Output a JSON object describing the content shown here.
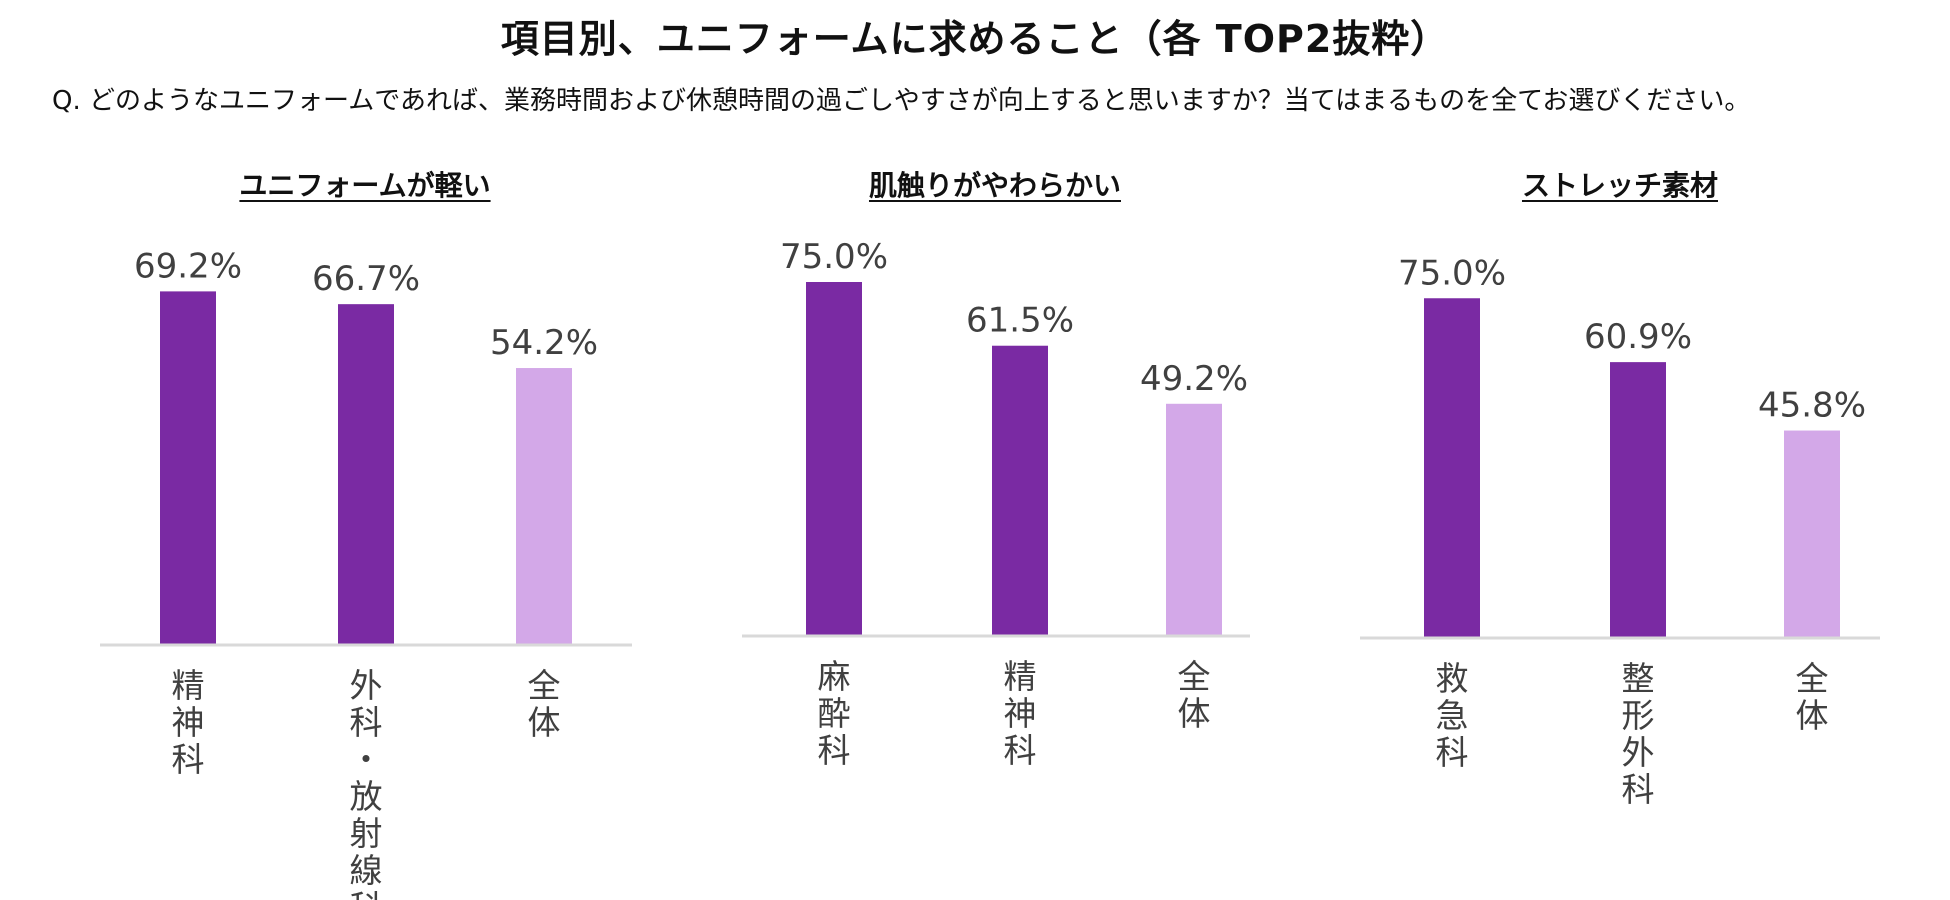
{
  "title": "項目別、ユニフォームに求めること（各 TOP2抜粋）",
  "question": "Q. どのようなユニフォームであれば、業務時間および休憩時間の過ごしやすさが向上すると思いますか？当てはまるものを全てお選びください。",
  "colors": {
    "highlight": "#7a2aa3",
    "overall": "#d3a8e8",
    "axis": "#d9d9d9",
    "value_text": "#404040"
  },
  "chart_data": [
    {
      "type": "bar",
      "title": "ユニフォームが軽い",
      "categories": [
        "精神科",
        "外科・放射線科",
        "全体"
      ],
      "values": [
        69.2,
        66.7,
        54.2
      ],
      "value_labels": [
        "69.2%",
        "66.7%",
        "54.2%"
      ],
      "series_kind": [
        "highlight",
        "highlight",
        "overall"
      ],
      "unit": "%",
      "ylim": [
        0,
        100
      ],
      "grid": false
    },
    {
      "type": "bar",
      "title": "肌触りがやわらかい",
      "categories": [
        "麻酔科",
        "精神科",
        "全体"
      ],
      "values": [
        75.0,
        61.5,
        49.2
      ],
      "value_labels": [
        "75.0%",
        "61.5%",
        "49.2%"
      ],
      "series_kind": [
        "highlight",
        "highlight",
        "overall"
      ],
      "unit": "%",
      "ylim": [
        0,
        100
      ],
      "grid": false
    },
    {
      "type": "bar",
      "title": "ストレッチ素材",
      "categories": [
        "救急科",
        "整形外科",
        "全体"
      ],
      "values": [
        75.0,
        60.9,
        45.8
      ],
      "value_labels": [
        "75.0%",
        "60.9%",
        "45.8%"
      ],
      "series_kind": [
        "highlight",
        "highlight",
        "overall"
      ],
      "unit": "%",
      "ylim": [
        0,
        100
      ],
      "grid": false
    }
  ]
}
